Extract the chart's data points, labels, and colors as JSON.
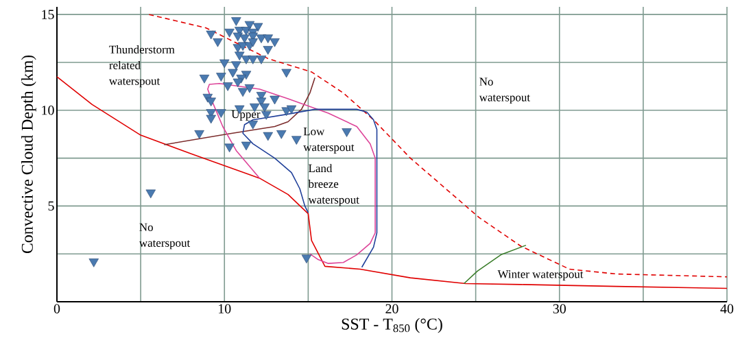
{
  "chart_data": {
    "type": "line",
    "xlabel": "SST - T$_{850}$ (°C)",
    "ylabel": "Convective Cloud Depth (km)",
    "xlim": [
      0,
      40
    ],
    "ylim": [
      0,
      15.4
    ],
    "xticks": [
      0,
      {
        "value": 5,
        "label": null
      },
      10,
      {
        "value": 15,
        "label": null
      },
      20,
      {
        "value": 25,
        "label": null
      },
      30,
      {
        "value": 35,
        "label": null
      },
      40
    ],
    "yticks": [
      {
        "value": 0,
        "label": null
      },
      {
        "value": 2.5,
        "label": null
      },
      5,
      {
        "value": 7.5,
        "label": null
      },
      10,
      {
        "value": 12.5,
        "label": null
      },
      15
    ],
    "grid": true,
    "series": [
      {
        "color": "#e00000",
        "line_style": "solid",
        "marker": "none",
        "x": [
          0,
          2.1,
          5.0,
          8.1,
          12.1,
          13.8,
          15.0,
          15.2,
          16.0,
          18.1,
          21.1,
          24.4,
          27.7,
          33.4,
          40
        ],
        "values": [
          11.75,
          10.3,
          8.7,
          7.7,
          6.45,
          5.6,
          4.6,
          3.2,
          1.85,
          1.7,
          1.25,
          0.95,
          0.9,
          0.8,
          0.7
        ]
      },
      {
        "color": "#e00000",
        "line_style": "dashed",
        "marker": "none",
        "x": [
          5.5,
          8.9,
          12.6,
          15.2,
          17.1,
          18.9,
          21.1,
          25.2,
          27.7,
          30.6,
          33.4,
          40
        ],
        "values": [
          15.0,
          14.3,
          12.7,
          12.0,
          10.9,
          9.5,
          7.5,
          4.4,
          2.9,
          1.7,
          1.45,
          1.3
        ]
      },
      {
        "color": "#3a7d2a",
        "line_style": "solid",
        "marker": "none",
        "x": [
          24.3,
          25.1,
          26.5,
          28.0
        ],
        "values": [
          0.95,
          1.6,
          2.45,
          2.95
        ]
      },
      {
        "color": "#7b2b2b",
        "line_style": "solid",
        "marker": "none",
        "x": [
          6.4,
          10.1,
          13.0,
          13.8,
          14.6,
          15.1,
          15.4
        ],
        "values": [
          8.2,
          8.75,
          9.15,
          9.4,
          10.05,
          10.9,
          11.7
        ]
      },
      {
        "color": "#dd4499",
        "line_style": "solid",
        "marker": "none",
        "x": [
          12.1,
          10.7,
          9.9,
          9.3,
          9.0,
          9.1,
          9.7,
          12.1,
          13.8,
          16.2,
          17.9,
          18.7,
          19.0,
          19.0,
          18.7,
          17.9,
          17.1,
          16.2,
          15.6,
          15.1
        ],
        "values": [
          6.45,
          7.9,
          9.15,
          10.4,
          11.1,
          11.35,
          11.4,
          11.1,
          10.6,
          9.85,
          9.15,
          8.25,
          7.5,
          3.6,
          3.05,
          2.45,
          2.05,
          2.0,
          2.2,
          2.5
        ]
      },
      {
        "color": "#1f3f99",
        "line_style": "solid",
        "marker": "none",
        "x": [
          18.2,
          18.9,
          19.1,
          19.1,
          18.9,
          18.5,
          17.9,
          15.4,
          13.8,
          11.7,
          11.2,
          11.1,
          11.7,
          13.0,
          14.0,
          14.5,
          14.8,
          15.0
        ],
        "values": [
          1.8,
          2.85,
          3.6,
          9.0,
          9.5,
          9.9,
          10.05,
          10.05,
          9.8,
          9.5,
          9.25,
          8.8,
          8.25,
          7.5,
          6.75,
          5.9,
          5.0,
          4.65
        ]
      },
      {
        "type": "scatter",
        "color": "#4a7ab0",
        "marker": "triangle",
        "x": [
          10.7,
          11.5,
          12.0,
          10.3,
          10.9,
          11.3,
          11.7,
          9.2,
          9.6,
          10.8,
          11.2,
          11.7,
          12.2,
          12.6,
          13.0,
          10.8,
          11.1,
          11.5,
          11.7,
          12.6,
          10.9,
          11.3,
          11.7,
          12.2,
          10.0,
          10.7,
          13.7,
          10.5,
          9.8,
          11.3,
          11.0,
          8.8,
          10.2,
          10.8,
          11.5,
          11.1,
          12.2,
          13.0,
          12.2,
          9.0,
          9.2,
          10.9,
          11.8,
          12.4,
          13.7,
          14.0,
          9.2,
          9.8,
          9.2,
          12.5,
          11.7,
          8.5,
          12.6,
          13.4,
          14.3,
          17.3,
          10.3,
          11.3,
          5.6,
          2.2,
          14.9
        ],
        "values": [
          14.7,
          14.5,
          14.4,
          14.1,
          14.2,
          14.2,
          14.1,
          14.0,
          13.6,
          13.9,
          13.8,
          13.9,
          13.8,
          13.8,
          13.6,
          13.3,
          13.4,
          13.4,
          13.6,
          13.2,
          12.9,
          12.7,
          12.7,
          12.7,
          12.5,
          12.4,
          12.0,
          12.0,
          11.8,
          11.9,
          11.7,
          11.7,
          11.3,
          11.5,
          11.2,
          11.0,
          10.8,
          10.6,
          10.5,
          10.7,
          10.5,
          10.1,
          10.2,
          10.2,
          10.0,
          10.1,
          9.9,
          9.9,
          9.6,
          9.8,
          9.3,
          8.8,
          8.7,
          8.8,
          8.5,
          8.9,
          8.1,
          8.2,
          5.7,
          2.1,
          2.3
        ]
      }
    ],
    "annotations": [
      "Thunderstorm related waterspout",
      "Upper",
      "Low waterspout",
      "Land breeze waterspout",
      "No waterspout",
      "No waterspout",
      "Winter waterspout"
    ]
  }
}
